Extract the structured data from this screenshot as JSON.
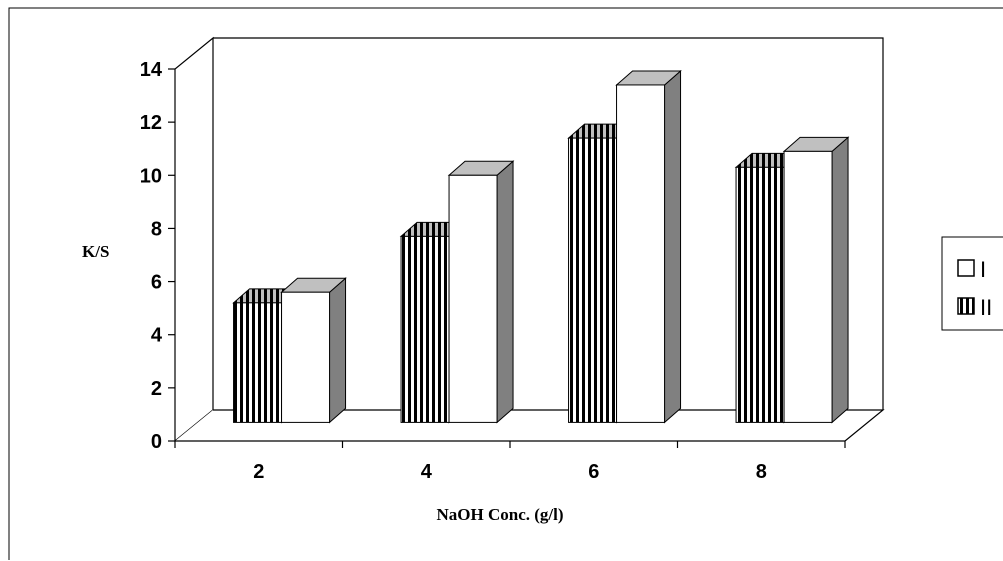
{
  "chart_data": {
    "type": "bar",
    "categories": [
      "2",
      "4",
      "6",
      "8"
    ],
    "series": [
      {
        "name": "II",
        "values": [
          4.5,
          7.0,
          10.7,
          9.6
        ],
        "pattern": "vertical-stripes"
      },
      {
        "name": "I",
        "values": [
          4.9,
          9.3,
          12.7,
          10.2
        ],
        "pattern": "plain-white"
      }
    ],
    "xlabel": "NaOH Conc. (g/l)",
    "ylabel": "K/S",
    "ylim": [
      0,
      14
    ],
    "yticks": [
      "0",
      "2",
      "4",
      "6",
      "8",
      "10",
      "12",
      "14"
    ],
    "grid": false,
    "legend": {
      "position": "right",
      "entries": [
        {
          "label": "I",
          "pattern": "plain-white"
        },
        {
          "label": "II",
          "pattern": "vertical-stripes"
        }
      ]
    },
    "style": "3d-clustered-column",
    "colors": {
      "bar_face": "#ffffff",
      "bar_top": "#c0c0c0",
      "bar_side": "#808080",
      "stripe": "#000000",
      "axis": "#000000"
    }
  }
}
